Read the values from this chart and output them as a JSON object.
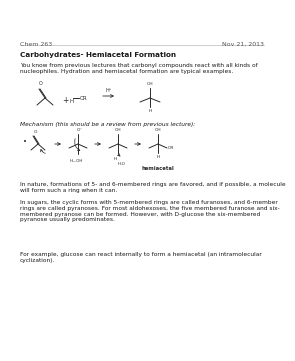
{
  "title_left": "Chem 263",
  "title_right": "Nov 21, 2013",
  "section_title": "Carbohydrates- Hemiacetal Formation",
  "paragraph1": "You know from previous lectures that carbonyl compounds react with all kinds of\nnucleophiles. Hydration and hemiacetal formation are typical examples.",
  "mechanism_label": "Mechanism (this should be a review from previous lecture):",
  "paragraph2": "In nature, formations of 5- and 6-membered rings are favored, and if possible, a molecule\nwill form such a ring when it can.",
  "paragraph3": "In sugars, the cyclic forms with 5-membered rings are called furanoses, and 6-member\nrings are called pyranoses. For most aldohexoses, the five membered furanose and six-\nmembered pyranose can be formed. However, with D-glucose the six-membered\npyranose usually predominates.",
  "paragraph4": "For example, glucose can react internally to form a hemiacetal (an intramolecular\ncyclization).",
  "bg_color": "#ffffff",
  "text_color": "#1a1a1a",
  "struct_color": "#2a2a2a",
  "header_line_color": "#aaaaaa"
}
